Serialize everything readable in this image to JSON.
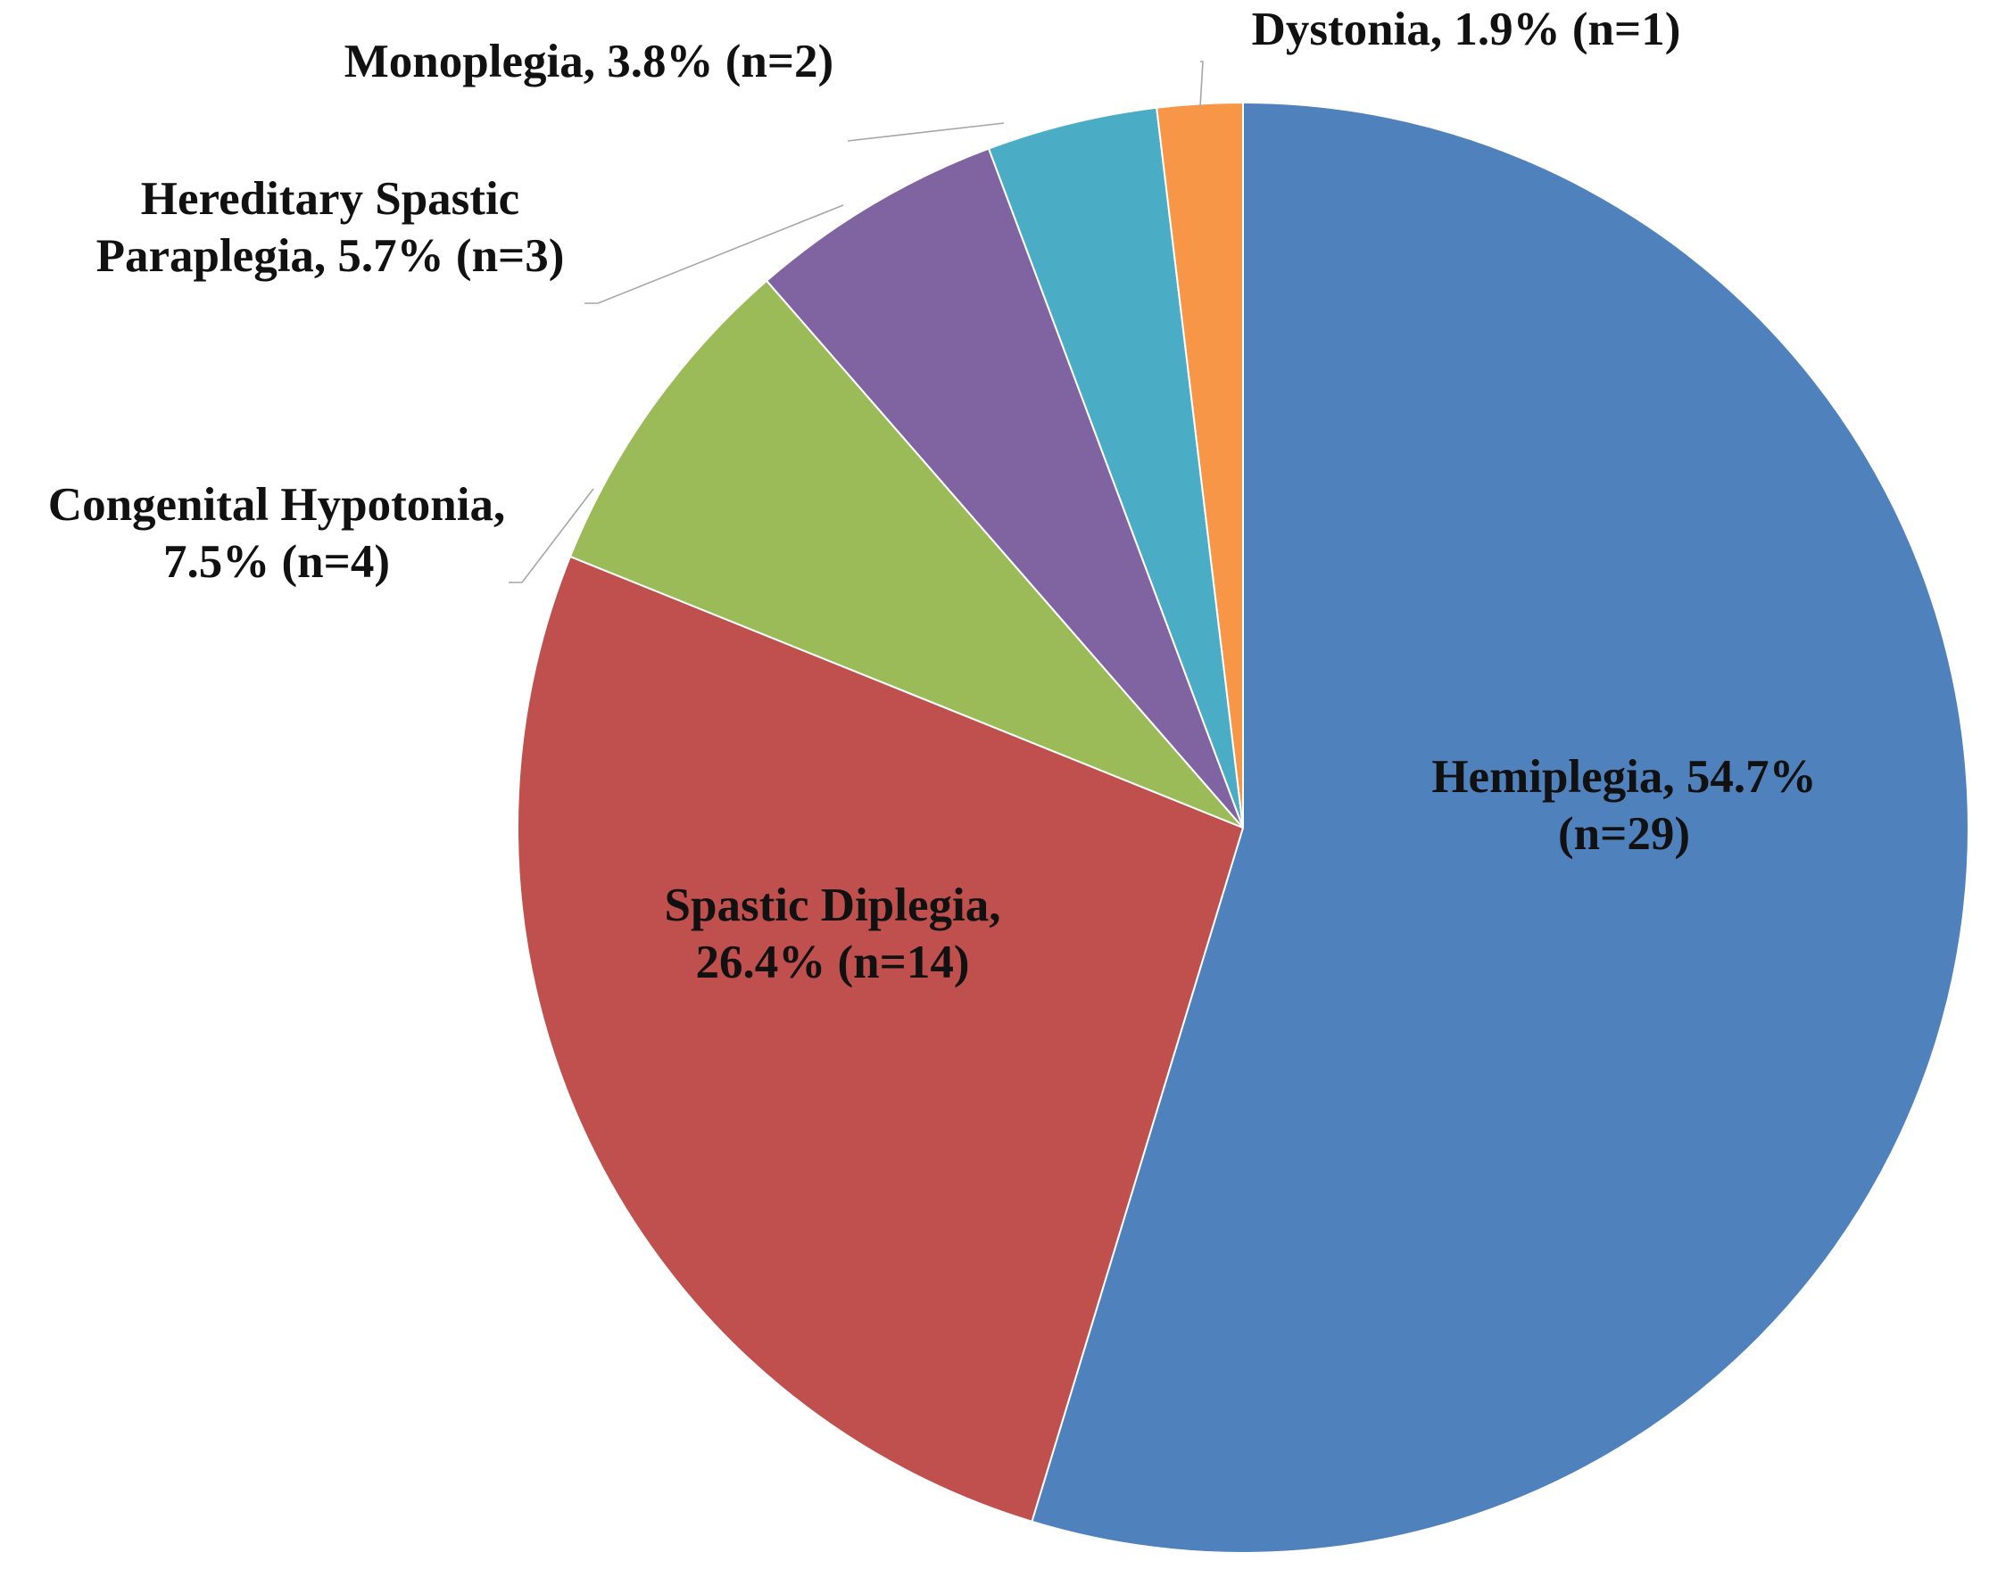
{
  "chart_data": {
    "type": "pie",
    "title": "",
    "start_angle_deg": 0,
    "direction": "clockwise",
    "slices": [
      {
        "name": "Hemiplegia",
        "percent": 54.7,
        "n": 29,
        "color": "#4F81BD",
        "label_lines": [
          "Hemiplegia, 54.7%",
          "(n=29)"
        ],
        "label_placement": "inside"
      },
      {
        "name": "Spastic Diplegia",
        "percent": 26.4,
        "n": 14,
        "color": "#C0504D",
        "label_lines": [
          "Spastic Diplegia,",
          "26.4% (n=14)"
        ],
        "label_placement": "inside"
      },
      {
        "name": "Congenital Hypotonia",
        "percent": 7.5,
        "n": 4,
        "color": "#9BBB59",
        "label_lines": [
          "Congenital Hypotonia,",
          "7.5% (n=4)"
        ],
        "label_placement": "outside"
      },
      {
        "name": "Hereditary Spastic Paraplegia",
        "percent": 5.7,
        "n": 3,
        "color": "#8064A2",
        "label_lines": [
          "Hereditary Spastic",
          "Paraplegia, 5.7% (n=3)"
        ],
        "label_placement": "outside"
      },
      {
        "name": "Monoplegia",
        "percent": 3.8,
        "n": 2,
        "color": "#4BACC6",
        "label_lines": [
          "Monoplegia, 3.8% (n=2)"
        ],
        "label_placement": "outside"
      },
      {
        "name": "Dystonia",
        "percent": 1.9,
        "n": 1,
        "color": "#F79646",
        "label_lines": [
          "Dystonia, 1.9% (n=1)"
        ],
        "label_placement": "outside"
      }
    ]
  }
}
